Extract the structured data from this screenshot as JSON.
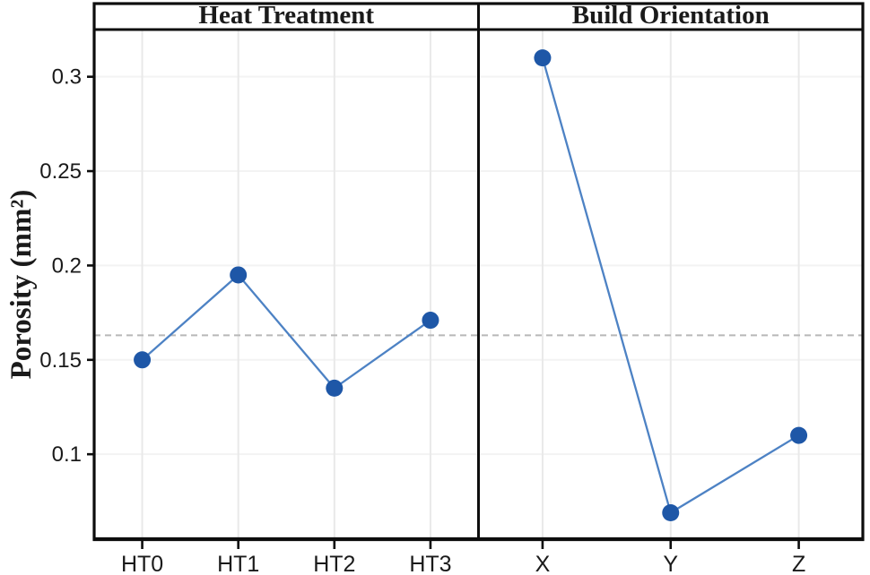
{
  "colors": {
    "background": "#ffffff",
    "axis_line": "#0d0d0d",
    "text": "#1a1a1a",
    "grid_vertical": "#e9e9e9",
    "grid_horizontal": "#f3f3f3",
    "reference_line": "#b8b8b8",
    "series_line": "#4d82c4",
    "marker_fill": "#1e57a7"
  },
  "chart_data": {
    "type": "line",
    "title": "",
    "xlabel": "",
    "ylabel": "Porosity (mm²)",
    "ylim": [
      0.055,
      0.325
    ],
    "yticks": [
      0.1,
      0.15,
      0.2,
      0.25,
      0.3
    ],
    "grid": true,
    "legend_position": "none",
    "reference_line": {
      "value": 0.163,
      "style": "dashed"
    },
    "panels": [
      {
        "title": "Heat Treatment",
        "categories": [
          "HT0",
          "HT1",
          "HT2",
          "HT3"
        ],
        "values": [
          0.15,
          0.195,
          0.135,
          0.171
        ]
      },
      {
        "title": "Build Orientation",
        "categories": [
          "X",
          "Y",
          "Z"
        ],
        "values": [
          0.31,
          0.069,
          0.11
        ]
      }
    ]
  }
}
